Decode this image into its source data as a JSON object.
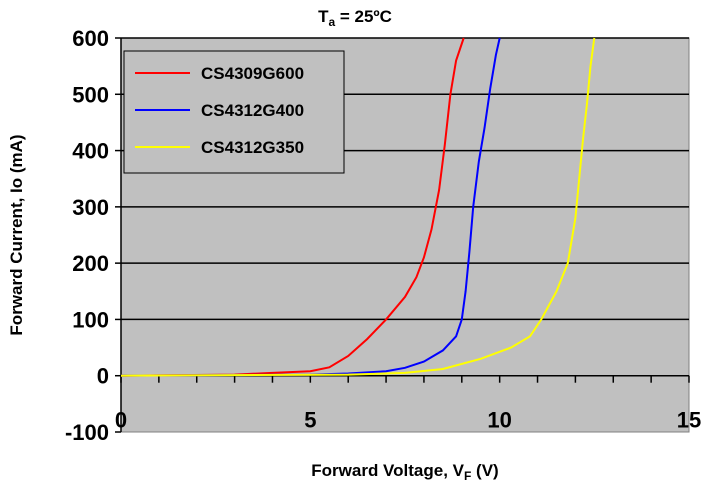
{
  "chart_data": {
    "type": "line",
    "title": "T",
    "title_subscript": "a",
    "title_suffix": " = 25ºC",
    "xlabel": "Forward Voltage, V",
    "xlabel_subscript": "F",
    "xlabel_suffix": " (V)",
    "ylabel": "Forward Current, Io (mA)",
    "xlim": [
      0,
      15
    ],
    "ylim": [
      -100,
      600
    ],
    "x_ticks": [
      "0",
      "5",
      "10",
      "15"
    ],
    "y_ticks": [
      "-100",
      "0",
      "100",
      "200",
      "300",
      "400",
      "500",
      "600"
    ],
    "x_tick_values": [
      0,
      5,
      10,
      15
    ],
    "y_tick_values": [
      -100,
      0,
      100,
      200,
      300,
      400,
      500,
      600
    ],
    "grid": "horizontal",
    "plot_background": "#c0c0c0",
    "legend_position": "top-left",
    "series": [
      {
        "name": "CS4309G600",
        "color": "#ff0000",
        "x": [
          0,
          3,
          4,
          5,
          5.5,
          6,
          6.5,
          7,
          7.5,
          7.8,
          8.0,
          8.2,
          8.4,
          8.55,
          8.7,
          8.85,
          9.05
        ],
        "y": [
          0,
          2,
          5,
          8,
          15,
          35,
          65,
          100,
          140,
          175,
          210,
          260,
          330,
          410,
          500,
          560,
          600
        ]
      },
      {
        "name": "CS4312G400",
        "color": "#0000ff",
        "x": [
          0,
          5,
          6,
          7,
          7.5,
          8.0,
          8.5,
          8.85,
          9.0,
          9.1,
          9.2,
          9.3,
          9.45,
          9.6,
          9.75,
          9.9,
          10.0
        ],
        "y": [
          0,
          2,
          4,
          8,
          14,
          25,
          45,
          70,
          100,
          150,
          220,
          300,
          380,
          440,
          510,
          570,
          600
        ]
      },
      {
        "name": "CS4312G350",
        "color": "#ffff00",
        "x": [
          0,
          6,
          7.5,
          8.5,
          9.5,
          10.3,
          10.8,
          11.1,
          11.5,
          11.8,
          12.0,
          12.1,
          12.2,
          12.3,
          12.4,
          12.5
        ],
        "y": [
          0,
          2,
          5,
          12,
          30,
          50,
          70,
          100,
          150,
          200,
          280,
          350,
          420,
          480,
          550,
          600
        ]
      }
    ]
  }
}
